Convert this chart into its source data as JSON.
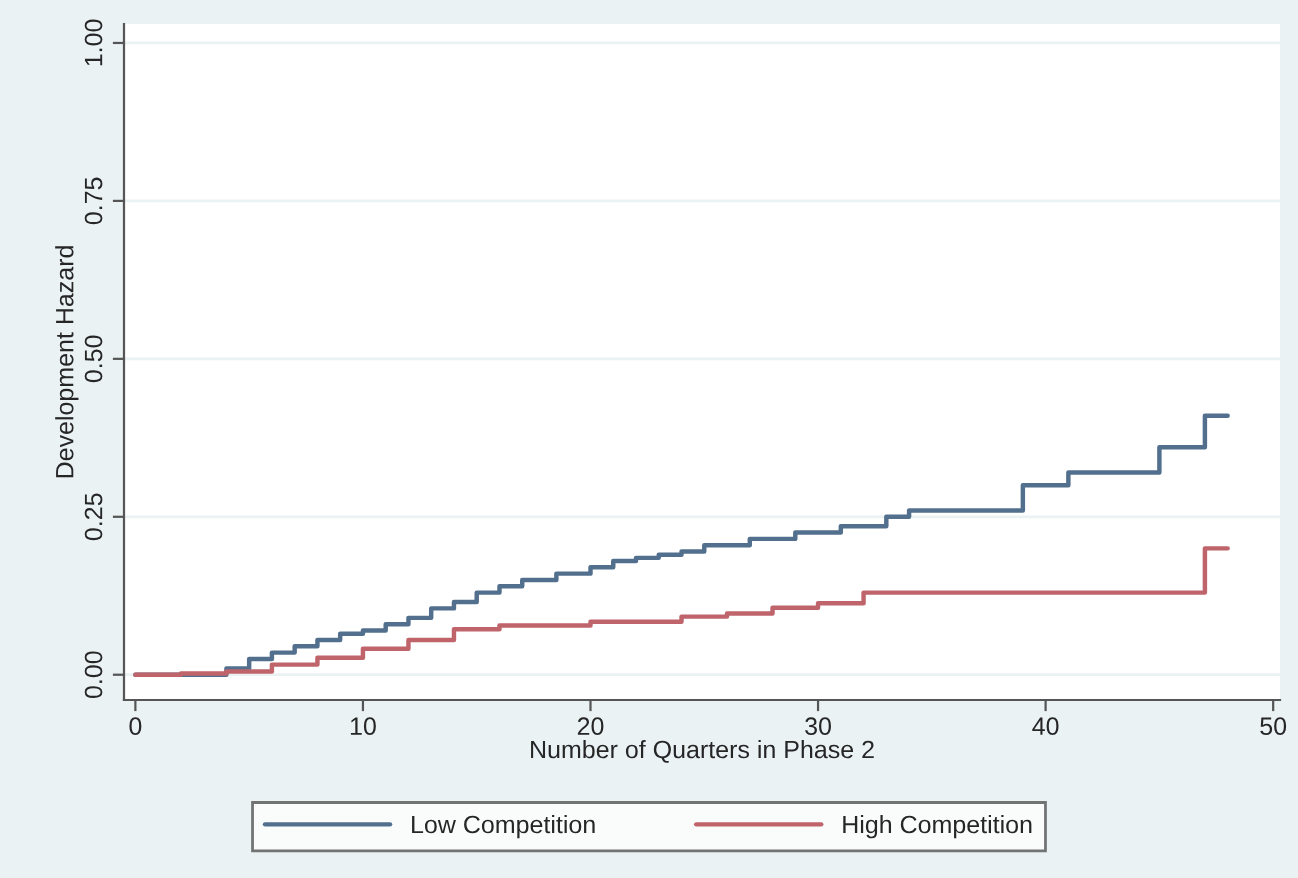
{
  "chart_data": {
    "type": "step",
    "xlabel": "Number of Quarters in Phase 2",
    "ylabel": "Development Hazard",
    "series": [
      {
        "name": "Low Competition",
        "color": "#52708e",
        "x": [
          0,
          4,
          5,
          6,
          7,
          8,
          9,
          10,
          11,
          12,
          13,
          14,
          15,
          16,
          17,
          18.5,
          20,
          21,
          22,
          23,
          24,
          25,
          27,
          29,
          31,
          33,
          34,
          39,
          41,
          45,
          47,
          48
        ],
        "values": [
          0,
          0.01,
          0.025,
          0.035,
          0.045,
          0.055,
          0.065,
          0.07,
          0.08,
          0.09,
          0.105,
          0.115,
          0.13,
          0.14,
          0.15,
          0.16,
          0.17,
          0.18,
          0.185,
          0.19,
          0.195,
          0.205,
          0.215,
          0.225,
          0.235,
          0.25,
          0.26,
          0.3,
          0.32,
          0.36,
          0.41,
          0.41
        ]
      },
      {
        "name": "High Competition",
        "color": "#c0646c",
        "x": [
          0,
          2,
          4,
          6,
          8,
          10,
          12,
          14,
          16,
          20,
          24,
          26,
          28,
          30,
          32,
          47,
          48
        ],
        "values": [
          0,
          0.002,
          0.005,
          0.016,
          0.027,
          0.041,
          0.055,
          0.072,
          0.078,
          0.084,
          0.092,
          0.097,
          0.106,
          0.113,
          0.13,
          0.2,
          0.2
        ]
      }
    ],
    "xlim": [
      -0.5,
      50.3
    ],
    "xticks": [
      0,
      10,
      20,
      30,
      40,
      50
    ],
    "ylim": [
      -0.04,
      1.03
    ],
    "yticks": [
      {
        "value": 0,
        "label": "0.00"
      },
      {
        "value": 0.25,
        "label": "0.25"
      },
      {
        "value": 0.5,
        "label": "0.50"
      },
      {
        "value": 0.75,
        "label": "0.75"
      },
      {
        "value": 1,
        "label": "1.00"
      }
    ],
    "grid": "y",
    "legend": "bottom",
    "line_style": "solid"
  }
}
